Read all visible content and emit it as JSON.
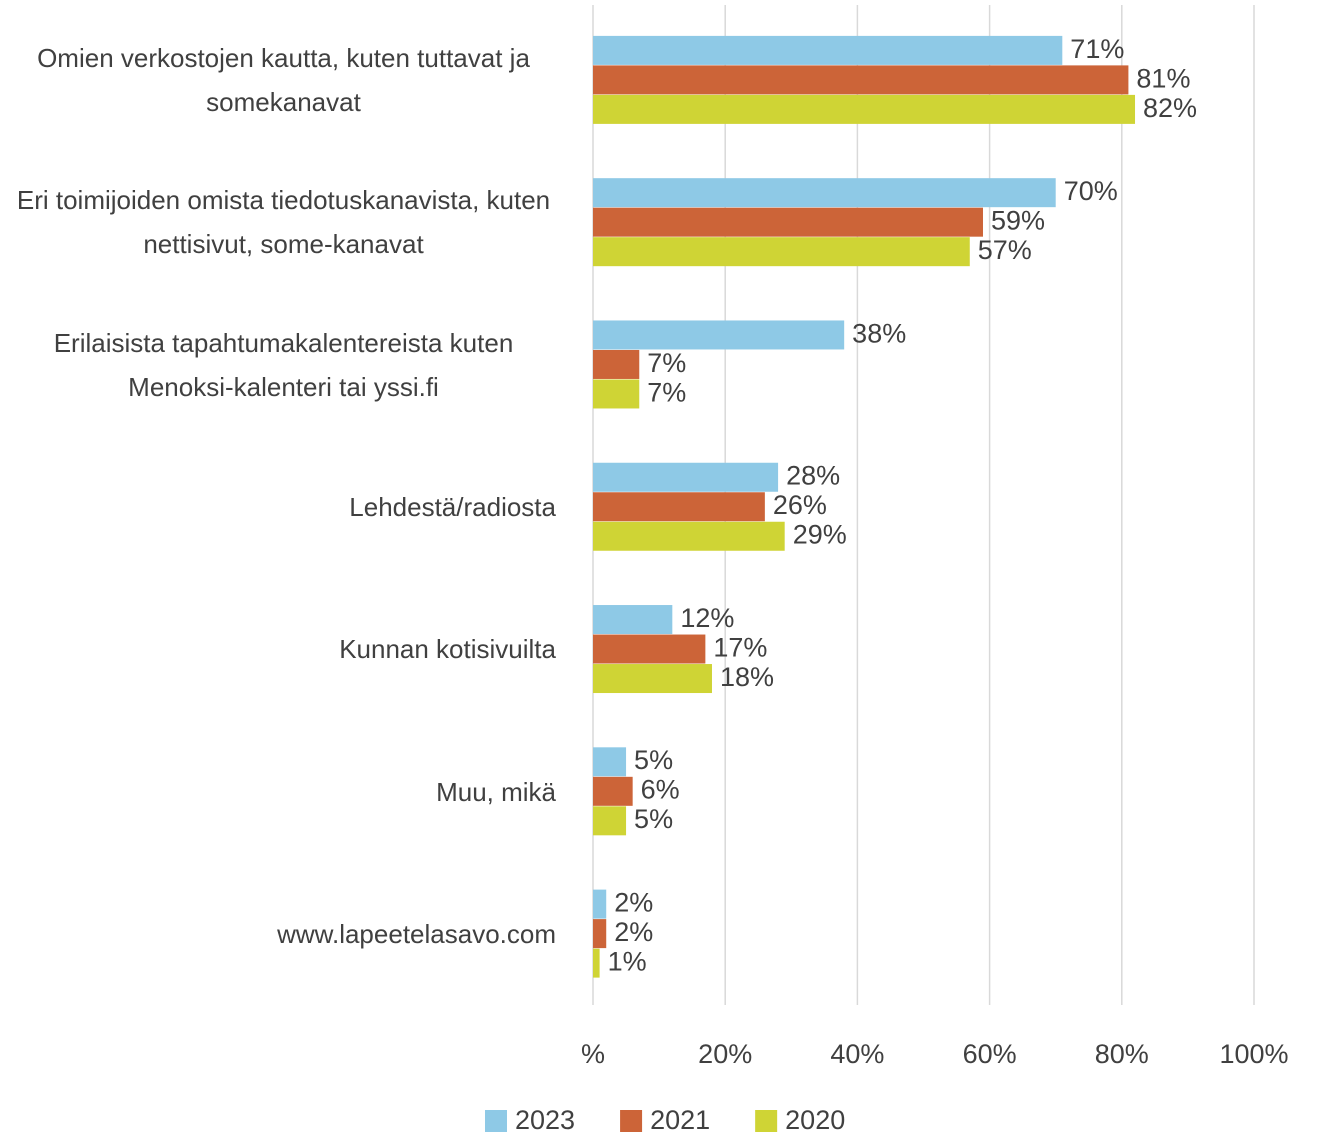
{
  "chart_data": {
    "type": "bar",
    "orientation": "horizontal",
    "categories": [
      "Omien verkostojen kautta, kuten tuttavat ja somekanavat",
      "Eri toimijoiden omista tiedotuskanavista, kuten nettisivut, some-kanavat",
      "Erilaisista tapahtumakalentereista kuten Menoksi-kalenteri tai yssi.fi",
      "Lehdestä/radiosta",
      "Kunnan kotisivuilta",
      "Muu, mikä",
      "www.lapeetelasavo.com"
    ],
    "series": [
      {
        "name": "2023",
        "color": "#8ec9e6",
        "values": [
          71,
          70,
          38,
          28,
          12,
          5,
          2
        ],
        "value_labels": [
          "71%",
          "70%",
          "38%",
          "28%",
          "12%",
          "5%",
          "2%"
        ]
      },
      {
        "name": "2021",
        "color": "#cc6438",
        "values": [
          81,
          59,
          7,
          26,
          17,
          6,
          2
        ],
        "value_labels": [
          "81%",
          "59%",
          "7%",
          "26%",
          "17%",
          "6%",
          "2%"
        ]
      },
      {
        "name": "2020",
        "color": "#cfd435",
        "values": [
          82,
          57,
          7,
          29,
          18,
          5,
          1
        ],
        "value_labels": [
          "82%",
          "57%",
          "7%",
          "29%",
          "18%",
          "5%",
          "1%"
        ]
      }
    ],
    "xlim": [
      0,
      100
    ],
    "xticks": [
      {
        "value": 0,
        "label": "%"
      },
      {
        "value": 20,
        "label": "20%"
      },
      {
        "value": 40,
        "label": "40%"
      },
      {
        "value": 60,
        "label": "60%"
      },
      {
        "value": 80,
        "label": "80%"
      },
      {
        "value": 100,
        "label": "100%"
      }
    ],
    "grid": true,
    "legend": "bottom"
  }
}
